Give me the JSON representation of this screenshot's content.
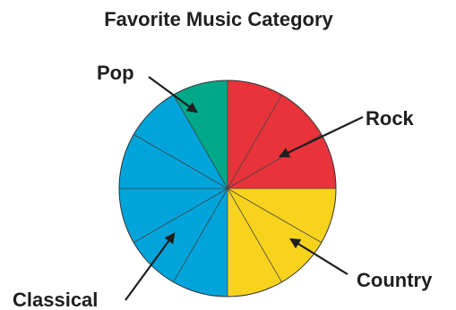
{
  "chart_data": {
    "type": "pie",
    "title": "Favorite Music Category",
    "start_angle_deg": 0,
    "direction": "clockwise",
    "slice_outline": "#333333",
    "divider_color": "#444444",
    "slices": [
      {
        "label": "Rock",
        "value": 3,
        "color": "#e8333a"
      },
      {
        "label": "Country",
        "value": 3,
        "color": "#f7d31d"
      },
      {
        "label": "Classical",
        "value": 5,
        "color": "#00a4da"
      },
      {
        "label": "Pop",
        "value": 1,
        "color": "#00a88a"
      }
    ]
  }
}
